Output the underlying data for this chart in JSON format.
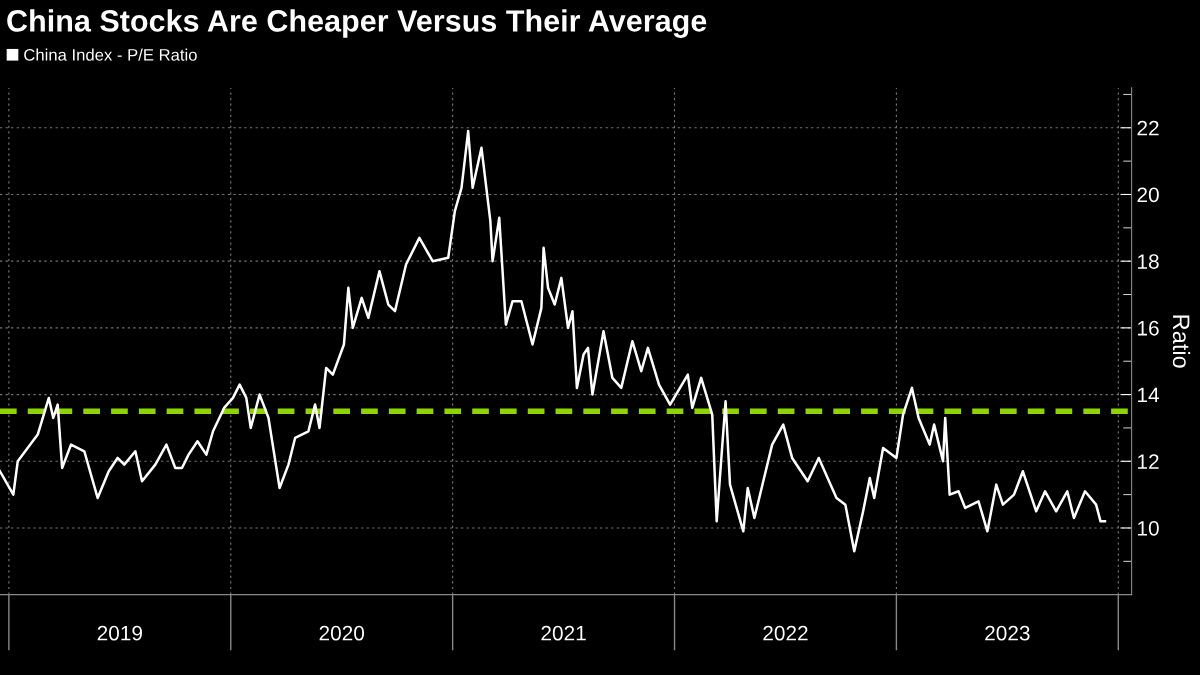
{
  "chart_data": {
    "type": "line",
    "title": "China Stocks Are Cheaper Versus Their Average",
    "ylabel": "Ratio",
    "x": [
      2018.96,
      2019.02,
      2019.04,
      2019.13,
      2019.18,
      2019.2,
      2019.22,
      2019.24,
      2019.28,
      2019.34,
      2019.37,
      2019.4,
      2019.45,
      2019.49,
      2019.52,
      2019.57,
      2019.6,
      2019.66,
      2019.71,
      2019.75,
      2019.78,
      2019.81,
      2019.85,
      2019.89,
      2019.92,
      2019.97,
      2020.01,
      2020.04,
      2020.07,
      2020.09,
      2020.13,
      2020.17,
      2020.22,
      2020.26,
      2020.29,
      2020.35,
      2020.38,
      2020.4,
      2020.43,
      2020.46,
      2020.51,
      2020.53,
      2020.55,
      2020.59,
      2020.62,
      2020.67,
      2020.71,
      2020.74,
      2020.79,
      2020.85,
      2020.91,
      2020.98,
      2021.01,
      2021.04,
      2021.07,
      2021.09,
      2021.13,
      2021.17,
      2021.18,
      2021.21,
      2021.24,
      2021.27,
      2021.31,
      2021.36,
      2021.4,
      2021.41,
      2021.43,
      2021.46,
      2021.49,
      2021.52,
      2021.54,
      2021.56,
      2021.59,
      2021.61,
      2021.63,
      2021.68,
      2021.72,
      2021.76,
      2021.81,
      2021.85,
      2021.88,
      2021.93,
      2021.98,
      2022.06,
      2022.08,
      2022.12,
      2022.17,
      2022.19,
      2022.23,
      2022.25,
      2022.31,
      2022.33,
      2022.36,
      2022.44,
      2022.49,
      2022.53,
      2022.6,
      2022.65,
      2022.73,
      2022.77,
      2022.81,
      2022.85,
      2022.88,
      2022.9,
      2022.94,
      2023.0,
      2023.03,
      2023.07,
      2023.1,
      2023.15,
      2023.17,
      2023.21,
      2023.22,
      2023.24,
      2023.28,
      2023.31,
      2023.37,
      2023.41,
      2023.45,
      2023.48,
      2023.53,
      2023.57,
      2023.63,
      2023.67,
      2023.72,
      2023.77,
      2023.8,
      2023.85,
      2023.9,
      2023.92,
      2023.94
    ],
    "series": [
      {
        "name": "China Index - P/E Ratio",
        "color": "#ffffff",
        "values": [
          11.7,
          11.0,
          12.0,
          12.8,
          13.9,
          13.3,
          13.7,
          11.8,
          12.5,
          12.3,
          11.6,
          10.9,
          11.7,
          12.1,
          11.9,
          12.3,
          11.4,
          11.9,
          12.5,
          11.8,
          11.8,
          12.2,
          12.6,
          12.2,
          12.9,
          13.6,
          13.9,
          14.3,
          13.9,
          13.0,
          14.0,
          13.3,
          11.2,
          11.9,
          12.7,
          12.9,
          13.7,
          13.0,
          14.8,
          14.6,
          15.5,
          17.2,
          16.0,
          16.9,
          16.3,
          17.7,
          16.7,
          16.5,
          17.9,
          18.7,
          18.0,
          18.1,
          19.5,
          20.2,
          21.9,
          20.2,
          21.4,
          19.2,
          18.0,
          19.3,
          16.1,
          16.8,
          16.8,
          15.5,
          16.6,
          18.4,
          17.2,
          16.7,
          17.5,
          16.0,
          16.5,
          14.2,
          15.2,
          15.4,
          14.0,
          15.9,
          14.5,
          14.2,
          15.6,
          14.7,
          15.4,
          14.3,
          13.7,
          14.6,
          13.6,
          14.5,
          13.4,
          10.2,
          13.8,
          11.3,
          9.9,
          11.2,
          10.3,
          12.5,
          13.1,
          12.1,
          11.4,
          12.1,
          10.9,
          10.7,
          9.3,
          10.5,
          11.5,
          10.9,
          12.4,
          12.1,
          13.4,
          14.2,
          13.3,
          12.5,
          13.1,
          12.0,
          13.3,
          11.0,
          11.1,
          10.6,
          10.8,
          9.9,
          11.3,
          10.7,
          11.0,
          11.7,
          10.5,
          11.1,
          10.5,
          11.1,
          10.3,
          11.1,
          10.7,
          10.2,
          10.2
        ]
      }
    ],
    "xlim": [
      2018.96,
      2024.06
    ],
    "xticks": [
      {
        "value": 2019,
        "label": null
      },
      {
        "value": 2019.5,
        "label": "2019"
      },
      {
        "value": 2020,
        "label": null
      },
      {
        "value": 2020.5,
        "label": "2020"
      },
      {
        "value": 2021,
        "label": null
      },
      {
        "value": 2021.5,
        "label": "2021"
      },
      {
        "value": 2022,
        "label": null
      },
      {
        "value": 2022.5,
        "label": "2022"
      },
      {
        "value": 2023,
        "label": null
      },
      {
        "value": 2023.5,
        "label": "2023"
      },
      {
        "value": 2024,
        "label": null
      }
    ],
    "ylim": [
      8,
      23.2
    ],
    "yticks": [
      {
        "value": 9,
        "label": null
      },
      10,
      {
        "value": 11,
        "label": null
      },
      12,
      {
        "value": 13,
        "label": null
      },
      14,
      {
        "value": 15,
        "label": null
      },
      16,
      {
        "value": 17,
        "label": null
      },
      18,
      {
        "value": 19,
        "label": null
      },
      20,
      {
        "value": 21,
        "label": null
      },
      22,
      {
        "value": 23,
        "label": null
      }
    ],
    "ref_lines": [
      {
        "axis": "y",
        "value": 13.5,
        "color": "#8fd400",
        "line_style": "dashed"
      }
    ],
    "grid": true,
    "legend": "top left",
    "line_style": "solid"
  }
}
